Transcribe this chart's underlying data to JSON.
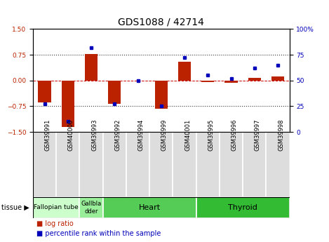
{
  "title": "GDS1088 / 42714",
  "samples": [
    "GSM39991",
    "GSM40000",
    "GSM39993",
    "GSM39992",
    "GSM39994",
    "GSM39999",
    "GSM40001",
    "GSM39995",
    "GSM39996",
    "GSM39997",
    "GSM39998"
  ],
  "log_ratio": [
    -0.65,
    -1.35,
    0.78,
    -0.68,
    0.0,
    -0.82,
    0.55,
    -0.05,
    -0.07,
    0.08,
    0.12
  ],
  "percentile_rank": [
    27,
    10,
    82,
    27,
    50,
    25,
    72,
    55,
    52,
    62,
    65
  ],
  "ylim_left": [
    -1.5,
    1.5
  ],
  "ylim_right": [
    0,
    100
  ],
  "yticks_left": [
    -1.5,
    -0.75,
    0.0,
    0.75,
    1.5
  ],
  "yticks_right": [
    0,
    25,
    50,
    75,
    100
  ],
  "ytick_labels_right": [
    "0",
    "25",
    "50",
    "75",
    "100%"
  ],
  "tissues": [
    {
      "label": "Fallopian tube",
      "samples": [
        0,
        1
      ],
      "color": "#ccffcc",
      "text_size": 6.5
    },
    {
      "label": "Gallbla\ndder",
      "samples": [
        2,
        2
      ],
      "color": "#99ee99",
      "text_size": 6
    },
    {
      "label": "Heart",
      "samples": [
        3,
        6
      ],
      "color": "#55cc55",
      "text_size": 8
    },
    {
      "label": "Thyroid",
      "samples": [
        7,
        10
      ],
      "color": "#33bb33",
      "text_size": 8
    }
  ],
  "bar_color_red": "#bb2200",
  "bar_color_blue": "#0000bb",
  "hline_color": "#cc0000",
  "dot_line_color": "#333333",
  "grid_color": "#888888",
  "bg_color": "#ffffff",
  "title_fontsize": 10,
  "tick_fontsize": 6.5,
  "sample_fontsize": 6,
  "bar_width": 0.55
}
